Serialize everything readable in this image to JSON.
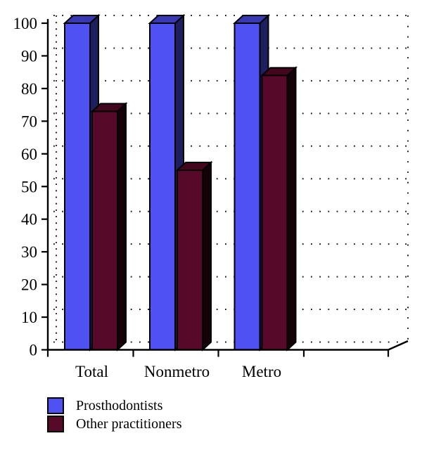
{
  "chart_data": {
    "type": "bar",
    "style": "3d",
    "title": "",
    "xlabel": "",
    "ylabel": "",
    "categories": [
      "Total",
      "Nonmetro",
      "Metro"
    ],
    "series": [
      {
        "name": "Prosthodontists",
        "values": [
          100,
          100,
          100
        ],
        "color": "#5051f2",
        "top_color": "#3838b2",
        "side_color": "#1e1f5e"
      },
      {
        "name": "Other practitioners",
        "values": [
          73,
          55,
          84
        ],
        "color": "#570929",
        "top_color": "#43061f",
        "side_color": "#14020a"
      }
    ],
    "ylim": [
      0,
      100
    ],
    "yticks": [
      0,
      10,
      20,
      30,
      40,
      50,
      60,
      70,
      80,
      90,
      100
    ],
    "grid": "dotted-horizontal",
    "legend_position": "bottom-left",
    "colors": {
      "outline": "#000000",
      "grid_dots": "#1a1a1a",
      "axis": "#000000",
      "background": "#ffffff"
    }
  }
}
